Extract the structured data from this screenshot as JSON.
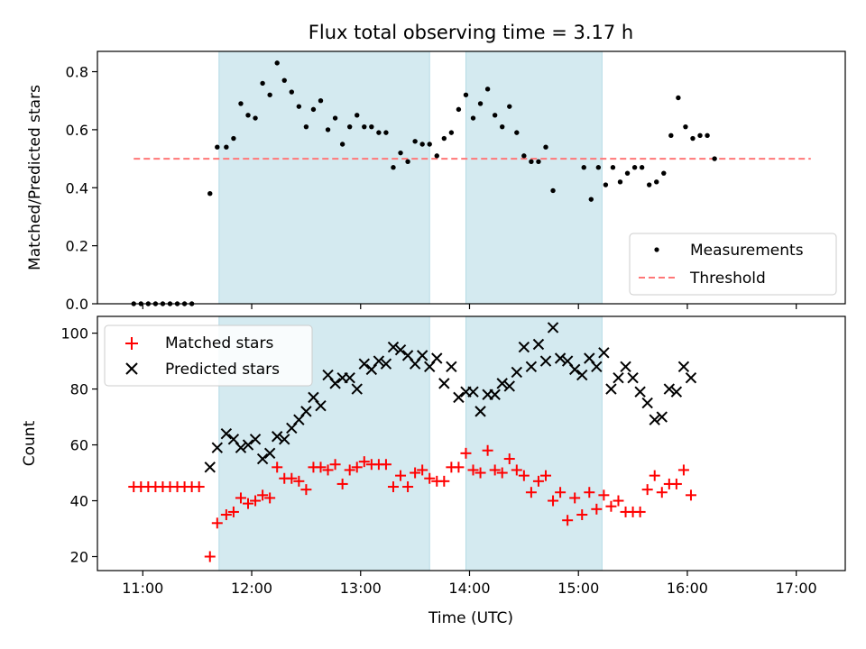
{
  "chart_data": [
    {
      "type": "scatter",
      "title": "Flux total observing time = 3.17 h",
      "xlabel": "",
      "ylabel": "Matched/Predicted stars",
      "ylim": [
        0.0,
        0.87
      ],
      "yticks": [
        0.0,
        0.2,
        0.4,
        0.6,
        0.8
      ],
      "yticklabels": [
        "0.0",
        "0.2",
        "0.4",
        "0.6",
        "0.8"
      ],
      "xlim": [
        "10:35",
        "17:27"
      ],
      "xticks": [
        "11:00",
        "12:00",
        "13:00",
        "14:00",
        "15:00",
        "16:00",
        "17:00"
      ],
      "xticklabels_visible": false,
      "legend": {
        "position": "lower-right",
        "entries": [
          "Measurements",
          "Threshold"
        ]
      },
      "colors": {
        "measurements": "#000000",
        "threshold": "#ff7777",
        "shade": "#d4eaf0"
      },
      "shaded_intervals": [
        [
          "11:42",
          "13:38"
        ],
        [
          "13:58",
          "15:13"
        ]
      ],
      "threshold": {
        "name": "Threshold",
        "y": 0.5,
        "x_range": [
          "10:55",
          "17:08"
        ]
      },
      "series": [
        {
          "name": "Measurements",
          "points": [
            [
              "10:55",
              0.0
            ],
            [
              "10:59",
              0.0
            ],
            [
              "11:03",
              0.0
            ],
            [
              "11:07",
              0.0
            ],
            [
              "11:11",
              0.0
            ],
            [
              "11:15",
              0.0
            ],
            [
              "11:19",
              0.0
            ],
            [
              "11:23",
              0.0
            ],
            [
              "11:27",
              0.0
            ],
            [
              "11:37",
              0.38
            ],
            [
              "11:41",
              0.54
            ],
            [
              "11:46",
              0.54
            ],
            [
              "11:50",
              0.57
            ],
            [
              "11:54",
              0.69
            ],
            [
              "11:58",
              0.65
            ],
            [
              "12:02",
              0.64
            ],
            [
              "12:06",
              0.76
            ],
            [
              "12:10",
              0.72
            ],
            [
              "12:14",
              0.83
            ],
            [
              "12:18",
              0.77
            ],
            [
              "12:22",
              0.73
            ],
            [
              "12:26",
              0.68
            ],
            [
              "12:30",
              0.61
            ],
            [
              "12:34",
              0.67
            ],
            [
              "12:38",
              0.7
            ],
            [
              "12:42",
              0.6
            ],
            [
              "12:46",
              0.64
            ],
            [
              "12:50",
              0.55
            ],
            [
              "12:54",
              0.61
            ],
            [
              "12:58",
              0.65
            ],
            [
              "13:02",
              0.61
            ],
            [
              "13:06",
              0.61
            ],
            [
              "13:10",
              0.59
            ],
            [
              "13:14",
              0.59
            ],
            [
              "13:18",
              0.47
            ],
            [
              "13:22",
              0.52
            ],
            [
              "13:26",
              0.49
            ],
            [
              "13:30",
              0.56
            ],
            [
              "13:34",
              0.55
            ],
            [
              "13:38",
              0.55
            ],
            [
              "13:42",
              0.51
            ],
            [
              "13:46",
              0.57
            ],
            [
              "13:50",
              0.59
            ],
            [
              "13:54",
              0.67
            ],
            [
              "13:58",
              0.72
            ],
            [
              "14:02",
              0.64
            ],
            [
              "14:06",
              0.69
            ],
            [
              "14:10",
              0.74
            ],
            [
              "14:14",
              0.65
            ],
            [
              "14:18",
              0.61
            ],
            [
              "14:22",
              0.68
            ],
            [
              "14:26",
              0.59
            ],
            [
              "14:30",
              0.51
            ],
            [
              "14:34",
              0.49
            ],
            [
              "14:38",
              0.49
            ],
            [
              "14:42",
              0.54
            ],
            [
              "14:46",
              0.39
            ],
            [
              "15:03",
              0.47
            ],
            [
              "15:07",
              0.36
            ],
            [
              "15:11",
              0.47
            ],
            [
              "15:15",
              0.41
            ],
            [
              "15:19",
              0.47
            ],
            [
              "15:23",
              0.42
            ],
            [
              "15:27",
              0.45
            ],
            [
              "15:31",
              0.47
            ],
            [
              "15:35",
              0.47
            ],
            [
              "15:39",
              0.41
            ],
            [
              "15:43",
              0.42
            ],
            [
              "15:47",
              0.45
            ],
            [
              "15:51",
              0.58
            ],
            [
              "15:55",
              0.71
            ],
            [
              "15:59",
              0.61
            ],
            [
              "16:03",
              0.57
            ],
            [
              "16:07",
              0.58
            ],
            [
              "16:11",
              0.58
            ],
            [
              "16:15",
              0.5
            ]
          ]
        }
      ]
    },
    {
      "type": "scatter",
      "title": "",
      "xlabel": "Time (UTC)",
      "ylabel": "Count",
      "ylim": [
        15,
        106
      ],
      "yticks": [
        20,
        40,
        60,
        80,
        100
      ],
      "yticklabels": [
        "20",
        "40",
        "60",
        "80",
        "100"
      ],
      "xlim": [
        "10:35",
        "17:27"
      ],
      "xticks": [
        "11:00",
        "12:00",
        "13:00",
        "14:00",
        "15:00",
        "16:00",
        "17:00"
      ],
      "xticklabels": [
        "11:00",
        "12:00",
        "13:00",
        "14:00",
        "15:00",
        "16:00",
        "17:00"
      ],
      "legend": {
        "position": "upper-left",
        "entries": [
          "Matched stars",
          "Predicted stars"
        ]
      },
      "colors": {
        "matched": "#ff0000",
        "predicted": "#000000",
        "shade": "#d4eaf0"
      },
      "shaded_intervals": [
        [
          "11:42",
          "13:38"
        ],
        [
          "13:58",
          "15:13"
        ]
      ],
      "series": [
        {
          "name": "Matched stars",
          "marker": "plus",
          "points": [
            [
              "10:55",
              45
            ],
            [
              "10:59",
              45
            ],
            [
              "11:03",
              45
            ],
            [
              "11:07",
              45
            ],
            [
              "11:11",
              45
            ],
            [
              "11:15",
              45
            ],
            [
              "11:19",
              45
            ],
            [
              "11:23",
              45
            ],
            [
              "11:27",
              45
            ],
            [
              "11:31",
              45
            ],
            [
              "11:37",
              20
            ],
            [
              "11:41",
              32
            ],
            [
              "11:46",
              35
            ],
            [
              "11:50",
              36
            ],
            [
              "11:54",
              41
            ],
            [
              "11:58",
              39
            ],
            [
              "12:02",
              40
            ],
            [
              "12:06",
              42
            ],
            [
              "12:10",
              41
            ],
            [
              "12:14",
              52
            ],
            [
              "12:18",
              48
            ],
            [
              "12:22",
              48
            ],
            [
              "12:26",
              47
            ],
            [
              "12:30",
              44
            ],
            [
              "12:34",
              52
            ],
            [
              "12:38",
              52
            ],
            [
              "12:42",
              51
            ],
            [
              "12:46",
              53
            ],
            [
              "12:50",
              46
            ],
            [
              "12:54",
              51
            ],
            [
              "12:58",
              52
            ],
            [
              "13:02",
              54
            ],
            [
              "13:06",
              53
            ],
            [
              "13:10",
              53
            ],
            [
              "13:14",
              53
            ],
            [
              "13:18",
              45
            ],
            [
              "13:22",
              49
            ],
            [
              "13:26",
              45
            ],
            [
              "13:30",
              50
            ],
            [
              "13:34",
              51
            ],
            [
              "13:38",
              48
            ],
            [
              "13:42",
              47
            ],
            [
              "13:46",
              47
            ],
            [
              "13:50",
              52
            ],
            [
              "13:54",
              52
            ],
            [
              "13:58",
              57
            ],
            [
              "14:02",
              51
            ],
            [
              "14:06",
              50
            ],
            [
              "14:10",
              58
            ],
            [
              "14:14",
              51
            ],
            [
              "14:18",
              50
            ],
            [
              "14:22",
              55
            ],
            [
              "14:26",
              51
            ],
            [
              "14:30",
              49
            ],
            [
              "14:34",
              43
            ],
            [
              "14:38",
              47
            ],
            [
              "14:42",
              49
            ],
            [
              "14:46",
              40
            ],
            [
              "14:50",
              43
            ],
            [
              "14:54",
              33
            ],
            [
              "14:58",
              41
            ],
            [
              "15:02",
              35
            ],
            [
              "15:06",
              43
            ],
            [
              "15:10",
              37
            ],
            [
              "15:14",
              42
            ],
            [
              "15:18",
              38
            ],
            [
              "15:22",
              40
            ],
            [
              "15:26",
              36
            ],
            [
              "15:30",
              36
            ],
            [
              "15:34",
              36
            ],
            [
              "15:38",
              44
            ],
            [
              "15:42",
              49
            ],
            [
              "15:46",
              43
            ],
            [
              "15:50",
              46
            ],
            [
              "15:54",
              46
            ],
            [
              "15:58",
              51
            ],
            [
              "16:02",
              42
            ]
          ]
        },
        {
          "name": "Predicted stars",
          "marker": "x",
          "points": [
            [
              "11:37",
              52
            ],
            [
              "11:41",
              59
            ],
            [
              "11:46",
              64
            ],
            [
              "11:50",
              62
            ],
            [
              "11:54",
              59
            ],
            [
              "11:58",
              60
            ],
            [
              "12:02",
              62
            ],
            [
              "12:06",
              55
            ],
            [
              "12:10",
              57
            ],
            [
              "12:14",
              63
            ],
            [
              "12:18",
              62
            ],
            [
              "12:22",
              66
            ],
            [
              "12:26",
              69
            ],
            [
              "12:30",
              72
            ],
            [
              "12:34",
              77
            ],
            [
              "12:38",
              74
            ],
            [
              "12:42",
              85
            ],
            [
              "12:46",
              82
            ],
            [
              "12:50",
              84
            ],
            [
              "12:54",
              84
            ],
            [
              "12:58",
              80
            ],
            [
              "13:02",
              89
            ],
            [
              "13:06",
              87
            ],
            [
              "13:10",
              90
            ],
            [
              "13:14",
              89
            ],
            [
              "13:18",
              95
            ],
            [
              "13:22",
              94
            ],
            [
              "13:26",
              92
            ],
            [
              "13:30",
              89
            ],
            [
              "13:34",
              92
            ],
            [
              "13:38",
              88
            ],
            [
              "13:42",
              91
            ],
            [
              "13:46",
              82
            ],
            [
              "13:50",
              88
            ],
            [
              "13:54",
              77
            ],
            [
              "13:58",
              79
            ],
            [
              "14:02",
              79
            ],
            [
              "14:06",
              72
            ],
            [
              "14:10",
              78
            ],
            [
              "14:14",
              78
            ],
            [
              "14:18",
              82
            ],
            [
              "14:22",
              81
            ],
            [
              "14:26",
              86
            ],
            [
              "14:30",
              95
            ],
            [
              "14:34",
              88
            ],
            [
              "14:38",
              96
            ],
            [
              "14:42",
              90
            ],
            [
              "14:46",
              102
            ],
            [
              "14:50",
              91
            ],
            [
              "14:54",
              90
            ],
            [
              "14:58",
              87
            ],
            [
              "15:02",
              85
            ],
            [
              "15:06",
              91
            ],
            [
              "15:10",
              88
            ],
            [
              "15:14",
              93
            ],
            [
              "15:18",
              80
            ],
            [
              "15:22",
              84
            ],
            [
              "15:26",
              88
            ],
            [
              "15:30",
              84
            ],
            [
              "15:34",
              79
            ],
            [
              "15:38",
              75
            ],
            [
              "15:42",
              69
            ],
            [
              "15:46",
              70
            ],
            [
              "15:50",
              80
            ],
            [
              "15:54",
              79
            ],
            [
              "15:58",
              88
            ],
            [
              "16:02",
              84
            ]
          ]
        }
      ]
    }
  ]
}
